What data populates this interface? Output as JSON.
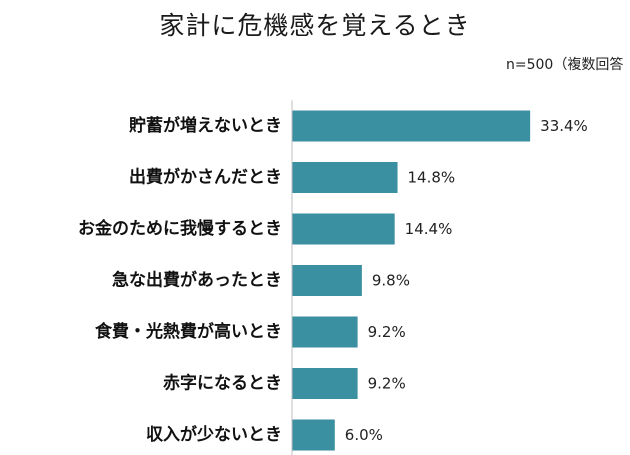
{
  "chart_data": {
    "type": "bar",
    "orientation": "horizontal",
    "title": "家計に危機感を覚えるとき",
    "note": "n=500（複数回答",
    "categories": [
      "貯蓄が増えないとき",
      "出費がかさんだとき",
      "お金のために我慢するとき",
      "急な出費があったとき",
      "食費・光熱費が高いとき",
      "赤字になるとき",
      "収入が少ないとき"
    ],
    "values": [
      33.4,
      14.8,
      14.4,
      9.8,
      9.2,
      9.2,
      6.0
    ],
    "value_labels": [
      "33.4%",
      "14.8%",
      "14.4%",
      "9.8%",
      "9.2%",
      "9.2%",
      "6.0%"
    ],
    "unit": "%",
    "xlim": [
      0,
      46
    ],
    "bar_color": "#3a8fa0",
    "axis_color": "#bfbfbf",
    "grid": false,
    "legend": "none"
  }
}
